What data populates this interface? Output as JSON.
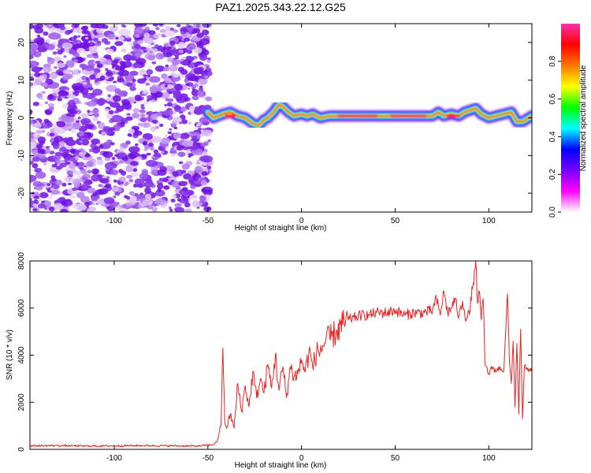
{
  "chart_data": [
    {
      "type": "heatmap",
      "title": "PAZ1.2025.343.22.12.G25",
      "xlabel": "Height of straight line (km)",
      "ylabel": "Frequency (Hz)",
      "xlim": [
        -145,
        123
      ],
      "ylim": [
        -25,
        25
      ],
      "xticks": [
        -100,
        -50,
        0,
        50,
        100
      ],
      "yticks": [
        -20,
        -10,
        0,
        10,
        20
      ],
      "noise_region_x": [
        -145,
        -50
      ],
      "ridge": {
        "x": [
          -50,
          -47,
          -42,
          -38,
          -34,
          -30,
          -26,
          -23,
          -20,
          -18,
          -15,
          -12,
          -10,
          -7,
          -4,
          0,
          3,
          6,
          10,
          15,
          20,
          30,
          40,
          50,
          60,
          70,
          73,
          76,
          80,
          84,
          87,
          90,
          93,
          96,
          100,
          104,
          108,
          112,
          115,
          118,
          123
        ],
        "frequency": [
          1.5,
          0,
          1.0,
          1.5,
          0.5,
          0,
          -1.5,
          -2.0,
          -0.5,
          0,
          1.5,
          3.5,
          3.0,
          1.5,
          0.5,
          1.0,
          0.5,
          1.0,
          0,
          0.5,
          0.5,
          0.5,
          0.5,
          0.5,
          0.5,
          0.5,
          1.5,
          0.5,
          1.0,
          0.5,
          1.5,
          2.0,
          2.5,
          1.0,
          0,
          0.5,
          1.0,
          1.5,
          -1.0,
          -1.0,
          0.5
        ]
      },
      "colorbar": {
        "label": "Normalized spectral amplitude",
        "ticks": [
          0.0,
          0.2,
          0.4,
          0.6,
          0.8
        ],
        "tick_labels": [
          "0.0",
          "0.2",
          "0.4",
          "0.6",
          "0.8"
        ],
        "range": [
          0,
          1
        ],
        "colors": [
          "#ffffff",
          "#ff00ff",
          "#7700ff",
          "#0000ff",
          "#00ffff",
          "#00ff00",
          "#ffff00",
          "#ff7700",
          "#ff0000",
          "#ff33aa"
        ]
      }
    },
    {
      "type": "line",
      "title": "",
      "xlabel": "Height of straight line (km)",
      "ylabel": "SNR (10 * v/v)",
      "xlim": [
        -145,
        123
      ],
      "ylim": [
        0,
        8000
      ],
      "xticks": [
        -100,
        -50,
        0,
        50,
        100
      ],
      "yticks": [
        0,
        2000,
        4000,
        6000,
        8000
      ],
      "series": [
        {
          "name": "SNR",
          "color": "#ee2222",
          "x": [
            -145,
            -130,
            -115,
            -100,
            -85,
            -70,
            -55,
            -50,
            -47,
            -45,
            -44,
            -43,
            -42,
            -41,
            -40,
            -38,
            -36,
            -34,
            -32,
            -30,
            -28,
            -26,
            -24,
            -22,
            -20,
            -18,
            -16,
            -14,
            -12,
            -10,
            -8,
            -6,
            -4,
            -2,
            0,
            2,
            4,
            6,
            8,
            10,
            13,
            16,
            19,
            22,
            25,
            28,
            32,
            36,
            40,
            45,
            50,
            55,
            60,
            65,
            70,
            72,
            74,
            76,
            78,
            80,
            82,
            84,
            86,
            88,
            90,
            91,
            92,
            93,
            94,
            95,
            96,
            97,
            98,
            100,
            102,
            104,
            106,
            108,
            110,
            111,
            112,
            113,
            114,
            115,
            116,
            117,
            118,
            119,
            120,
            123
          ],
          "values": [
            150,
            160,
            140,
            150,
            160,
            150,
            140,
            180,
            200,
            350,
            700,
            1000,
            4300,
            1200,
            900,
            1500,
            900,
            2800,
            1600,
            2700,
            1800,
            3300,
            2200,
            3000,
            2400,
            3600,
            2600,
            4000,
            2500,
            3500,
            2200,
            3500,
            3100,
            3200,
            3800,
            3300,
            4200,
            3500,
            4100,
            4200,
            4600,
            4800,
            5000,
            5300,
            5500,
            5600,
            5700,
            5700,
            5800,
            5800,
            5900,
            5700,
            5800,
            5800,
            5900,
            6400,
            5700,
            6700,
            5800,
            6000,
            6400,
            5600,
            6300,
            5500,
            5900,
            6900,
            7000,
            8000,
            6200,
            6700,
            5500,
            6400,
            3600,
            3200,
            3500,
            3300,
            3500,
            3300,
            6600,
            3700,
            2800,
            4600,
            1800,
            4500,
            1500,
            5100,
            1300,
            3500,
            3400,
            3300
          ]
        }
      ]
    }
  ]
}
